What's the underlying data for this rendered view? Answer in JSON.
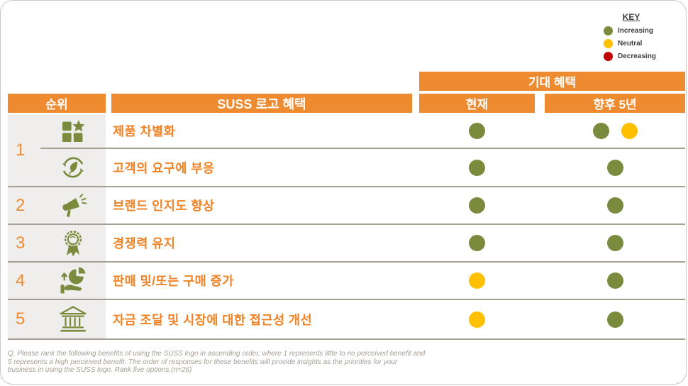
{
  "legend": {
    "title": "KEY",
    "items": [
      {
        "label": "Increasing",
        "color": "#7a8b3e"
      },
      {
        "label": "Neutral",
        "color": "#ffc000"
      },
      {
        "label": "Decreasing",
        "color": "#c00000"
      }
    ]
  },
  "table": {
    "group_header": "기대 혜택",
    "columns": {
      "rank": "순위",
      "benefit": "SUSS 로고 혜택",
      "current": "현재",
      "next5": "향후 5년"
    },
    "rows": [
      {
        "rank": "1",
        "icon": "product-differentiation-icon",
        "label": "제품 차별화",
        "current": [
          "increasing"
        ],
        "next5": [
          "increasing",
          "neutral"
        ]
      },
      {
        "rank": "1",
        "icon": "eco-cycle-icon",
        "label": "고객의 요구에 부응",
        "current": [
          "increasing"
        ],
        "next5": [
          "increasing"
        ]
      },
      {
        "rank": "2",
        "icon": "megaphone-icon",
        "label": "브랜드 인지도 향상",
        "current": [
          "increasing"
        ],
        "next5": [
          "increasing"
        ]
      },
      {
        "rank": "3",
        "icon": "award-ribbon-icon",
        "label": "경쟁력 유지",
        "current": [
          "increasing"
        ],
        "next5": [
          "increasing"
        ]
      },
      {
        "rank": "4",
        "icon": "sales-growth-icon",
        "label": "판매 및/또는 구매 증가",
        "current": [
          "neutral"
        ],
        "next5": [
          "increasing"
        ]
      },
      {
        "rank": "5",
        "icon": "bank-icon",
        "label": "자금 조달 및 시장에 대한 접근성 개선",
        "current": [
          "neutral"
        ],
        "next5": [
          "increasing"
        ]
      }
    ]
  },
  "footnote": {
    "lines": [
      "Q. Please rank the following benefits of using the SUSS logo in ascending order, where 1 represents little to no perceived benefit and",
      "5 represents a high perceived benefit. The order of responses for these benefits will provide insights as the priorities for your",
      "business in using the SUSS logo.  Rank five options.(n=26)"
    ]
  },
  "colors": {
    "orange": "#ee8a2f",
    "olive": "#7a8b3e",
    "increasing": "#7a8b3e",
    "neutral": "#ffc000",
    "decreasing": "#c00000"
  }
}
